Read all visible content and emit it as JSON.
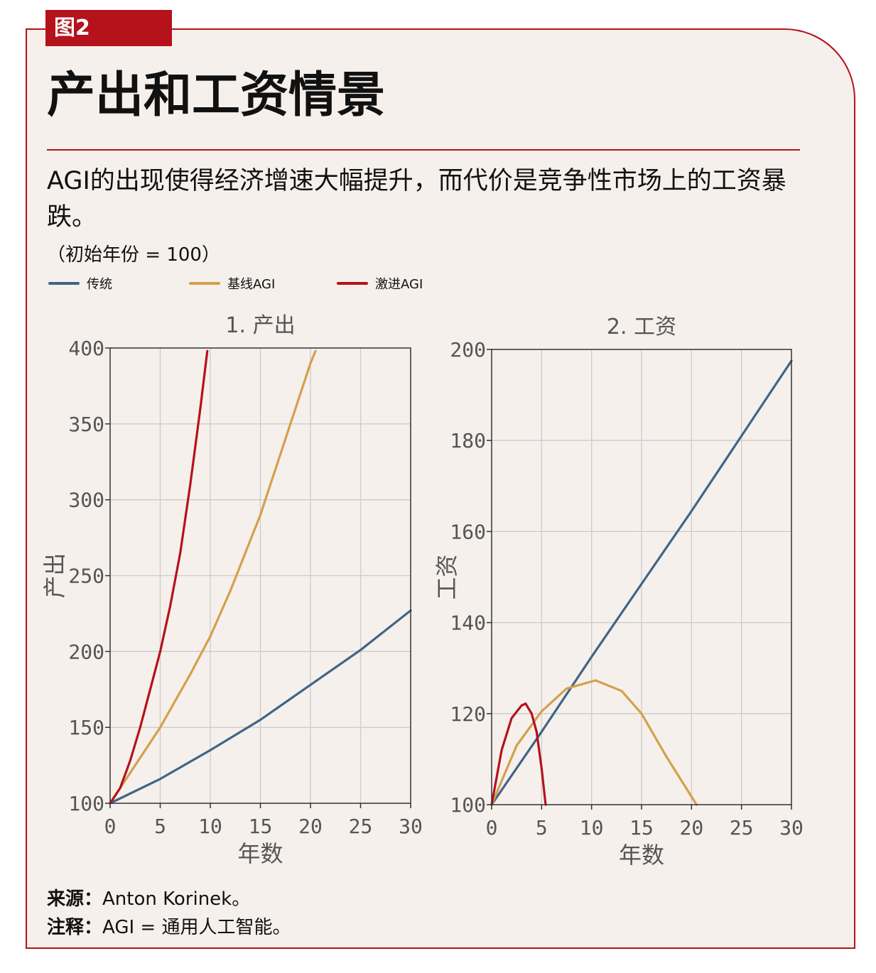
{
  "figure_tag": "图2",
  "title": "产出和工资情景",
  "subtitle": "AGI的出现使得经济增速大幅提升，而代价是竞争性市场上的工资暴跌。",
  "unit_note": "（初始年份 = 100）",
  "legend": [
    {
      "label": "传统",
      "color": "#3f6586"
    },
    {
      "label": "基线AGI",
      "color": "#d4a04a"
    },
    {
      "label": "激进AGI",
      "color": "#b5121b"
    }
  ],
  "footer": {
    "source_label": "来源：",
    "source_text": "Anton Korinek。",
    "note_label": "注释：",
    "note_text": "AGI = 通用人工智能。"
  },
  "chart_data": [
    {
      "type": "line",
      "title": "1. 产出",
      "xlabel": "年数",
      "ylabel": "产出",
      "xlim": [
        0,
        30
      ],
      "ylim": [
        100,
        400
      ],
      "xticks": [
        0,
        5,
        10,
        15,
        20,
        25,
        30
      ],
      "yticks": [
        100,
        150,
        200,
        250,
        300,
        350,
        400
      ],
      "grid": true,
      "series": [
        {
          "name": "传统",
          "color": "#3f6586",
          "x": [
            0,
            5,
            10,
            15,
            20,
            25,
            30
          ],
          "y": [
            100,
            116,
            135,
            155,
            178,
            201,
            227
          ]
        },
        {
          "name": "基线AGI",
          "color": "#d4a04a",
          "x": [
            0,
            2,
            5,
            8,
            10,
            12,
            15,
            18,
            20,
            20.5
          ],
          "y": [
            100,
            120,
            150,
            185,
            210,
            240,
            290,
            350,
            390,
            398
          ]
        },
        {
          "name": "激进AGI",
          "color": "#b5121b",
          "x": [
            0,
            1,
            2,
            3,
            4,
            5,
            6,
            7,
            8,
            9,
            9.7
          ],
          "y": [
            100,
            110,
            128,
            150,
            175,
            200,
            230,
            265,
            310,
            360,
            398
          ]
        }
      ]
    },
    {
      "type": "line",
      "title": "2. 工资",
      "xlabel": "年数",
      "ylabel": "工资",
      "xlim": [
        0,
        30
      ],
      "ylim": [
        100,
        200
      ],
      "xticks": [
        0,
        5,
        10,
        15,
        20,
        25,
        30
      ],
      "yticks": [
        100,
        120,
        140,
        160,
        180,
        200
      ],
      "grid": true,
      "series": [
        {
          "name": "传统",
          "color": "#3f6586",
          "x": [
            0,
            5,
            10,
            15,
            20,
            25,
            30
          ],
          "y": [
            100,
            116,
            132.5,
            148.5,
            164.5,
            181,
            197.5
          ]
        },
        {
          "name": "基线AGI",
          "color": "#d4a04a",
          "x": [
            0,
            2.5,
            5,
            7.5,
            10.4,
            13,
            15,
            17.5,
            20.5
          ],
          "y": [
            100,
            113,
            120.5,
            125.5,
            127.3,
            125,
            120,
            110.5,
            100
          ]
        },
        {
          "name": "激进AGI",
          "color": "#b5121b",
          "x": [
            0,
            1,
            2,
            3,
            3.4,
            4,
            4.5,
            5,
            5.4
          ],
          "y": [
            100,
            112,
            119,
            121.8,
            122.2,
            120,
            116,
            108,
            100
          ]
        }
      ]
    }
  ]
}
